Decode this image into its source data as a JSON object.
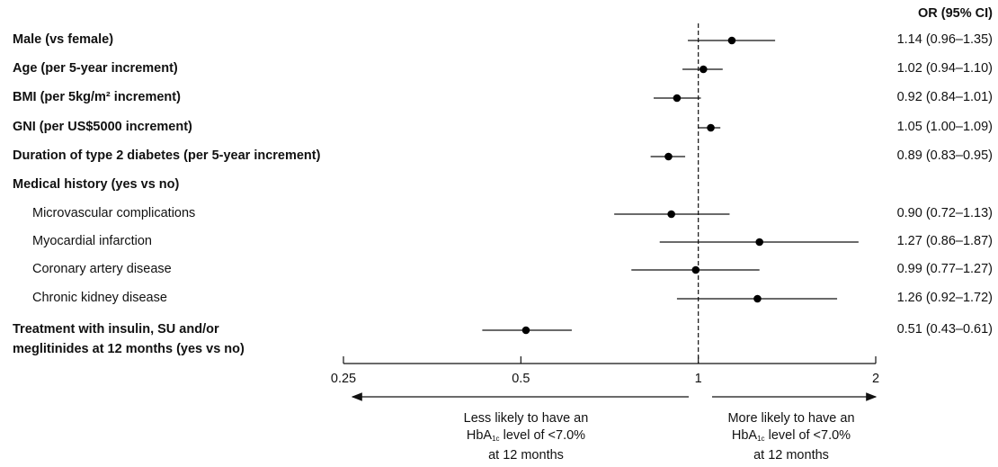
{
  "chart_data": {
    "type": "forest",
    "x_scale": "log",
    "xlim": [
      0.25,
      2
    ],
    "reference_line": 1,
    "x_ticks": [
      "0.25",
      "0.5",
      "1",
      "2"
    ],
    "column_header": "OR (95% CI)",
    "rows": [
      {
        "label": "Male (vs female)",
        "style": "bold",
        "or": 1.14,
        "lo": 0.96,
        "hi": 1.35,
        "ci_text": "1.14 (0.96–1.35)"
      },
      {
        "label": "Age (per 5-year increment)",
        "style": "bold",
        "or": 1.02,
        "lo": 0.94,
        "hi": 1.1,
        "ci_text": "1.02 (0.94–1.10)"
      },
      {
        "label": "BMI (per 5kg/m² increment)",
        "style": "bold",
        "or": 0.92,
        "lo": 0.84,
        "hi": 1.01,
        "ci_text": "0.92 (0.84–1.01)"
      },
      {
        "label": "GNI (per US$5000 increment)",
        "style": "bold",
        "or": 1.05,
        "lo": 1.0,
        "hi": 1.09,
        "ci_text": "1.05 (1.00–1.09)"
      },
      {
        "label": "Duration of type 2 diabetes (per 5-year increment)",
        "style": "bold",
        "or": 0.89,
        "lo": 0.83,
        "hi": 0.95,
        "ci_text": "0.89 (0.83–0.95)"
      },
      {
        "label": "Medical history (yes vs no)",
        "style": "bold",
        "or": null,
        "lo": null,
        "hi": null,
        "ci_text": ""
      },
      {
        "label": "Microvascular complications",
        "style": "sub",
        "or": 0.9,
        "lo": 0.72,
        "hi": 1.13,
        "ci_text": "0.90 (0.72–1.13)"
      },
      {
        "label": "Myocardial infarction",
        "style": "sub",
        "or": 1.27,
        "lo": 0.86,
        "hi": 1.87,
        "ci_text": "1.27 (0.86–1.87)"
      },
      {
        "label": "Coronary artery disease",
        "style": "sub",
        "or": 0.99,
        "lo": 0.77,
        "hi": 1.27,
        "ci_text": "0.99 (0.77–1.27)"
      },
      {
        "label": "Chronic kidney disease",
        "style": "sub",
        "or": 1.26,
        "lo": 0.92,
        "hi": 1.72,
        "ci_text": "1.26 (0.92–1.72)"
      },
      {
        "label": "Treatment with insulin, SU and/or",
        "label_line2": "meglitinides at 12 months (yes vs no)",
        "style": "bold",
        "or": 0.51,
        "lo": 0.43,
        "hi": 0.61,
        "ci_text": "0.51 (0.43–0.61)"
      }
    ],
    "left_note": {
      "line1": "Less likely to have an",
      "line2_pre": "HbA",
      "line2_sub": "1c",
      "line2_post": " level of <7.0%",
      "line3": "at 12 months"
    },
    "right_note": {
      "line1": "More likely to have an",
      "line2_pre": "HbA",
      "line2_sub": "1c",
      "line2_post": " level of <7.0%",
      "line3": "at 12 months"
    }
  }
}
